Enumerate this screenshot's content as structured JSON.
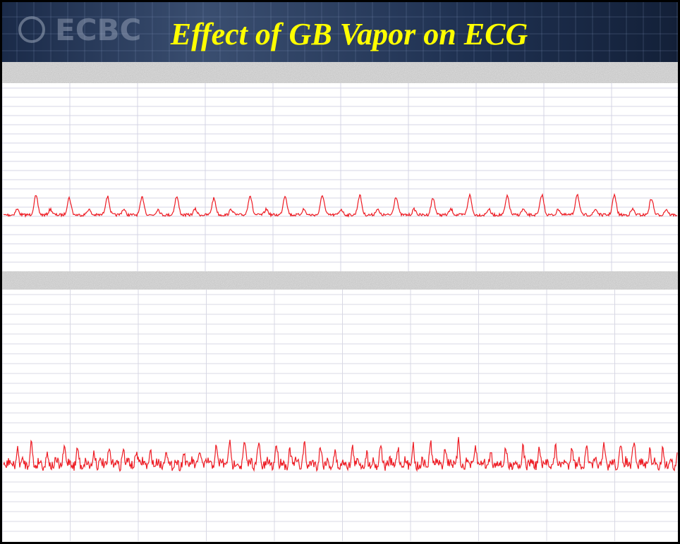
{
  "header": {
    "logo": "ECBC",
    "title": "Effect of GB Vapor on ECG"
  }
}
